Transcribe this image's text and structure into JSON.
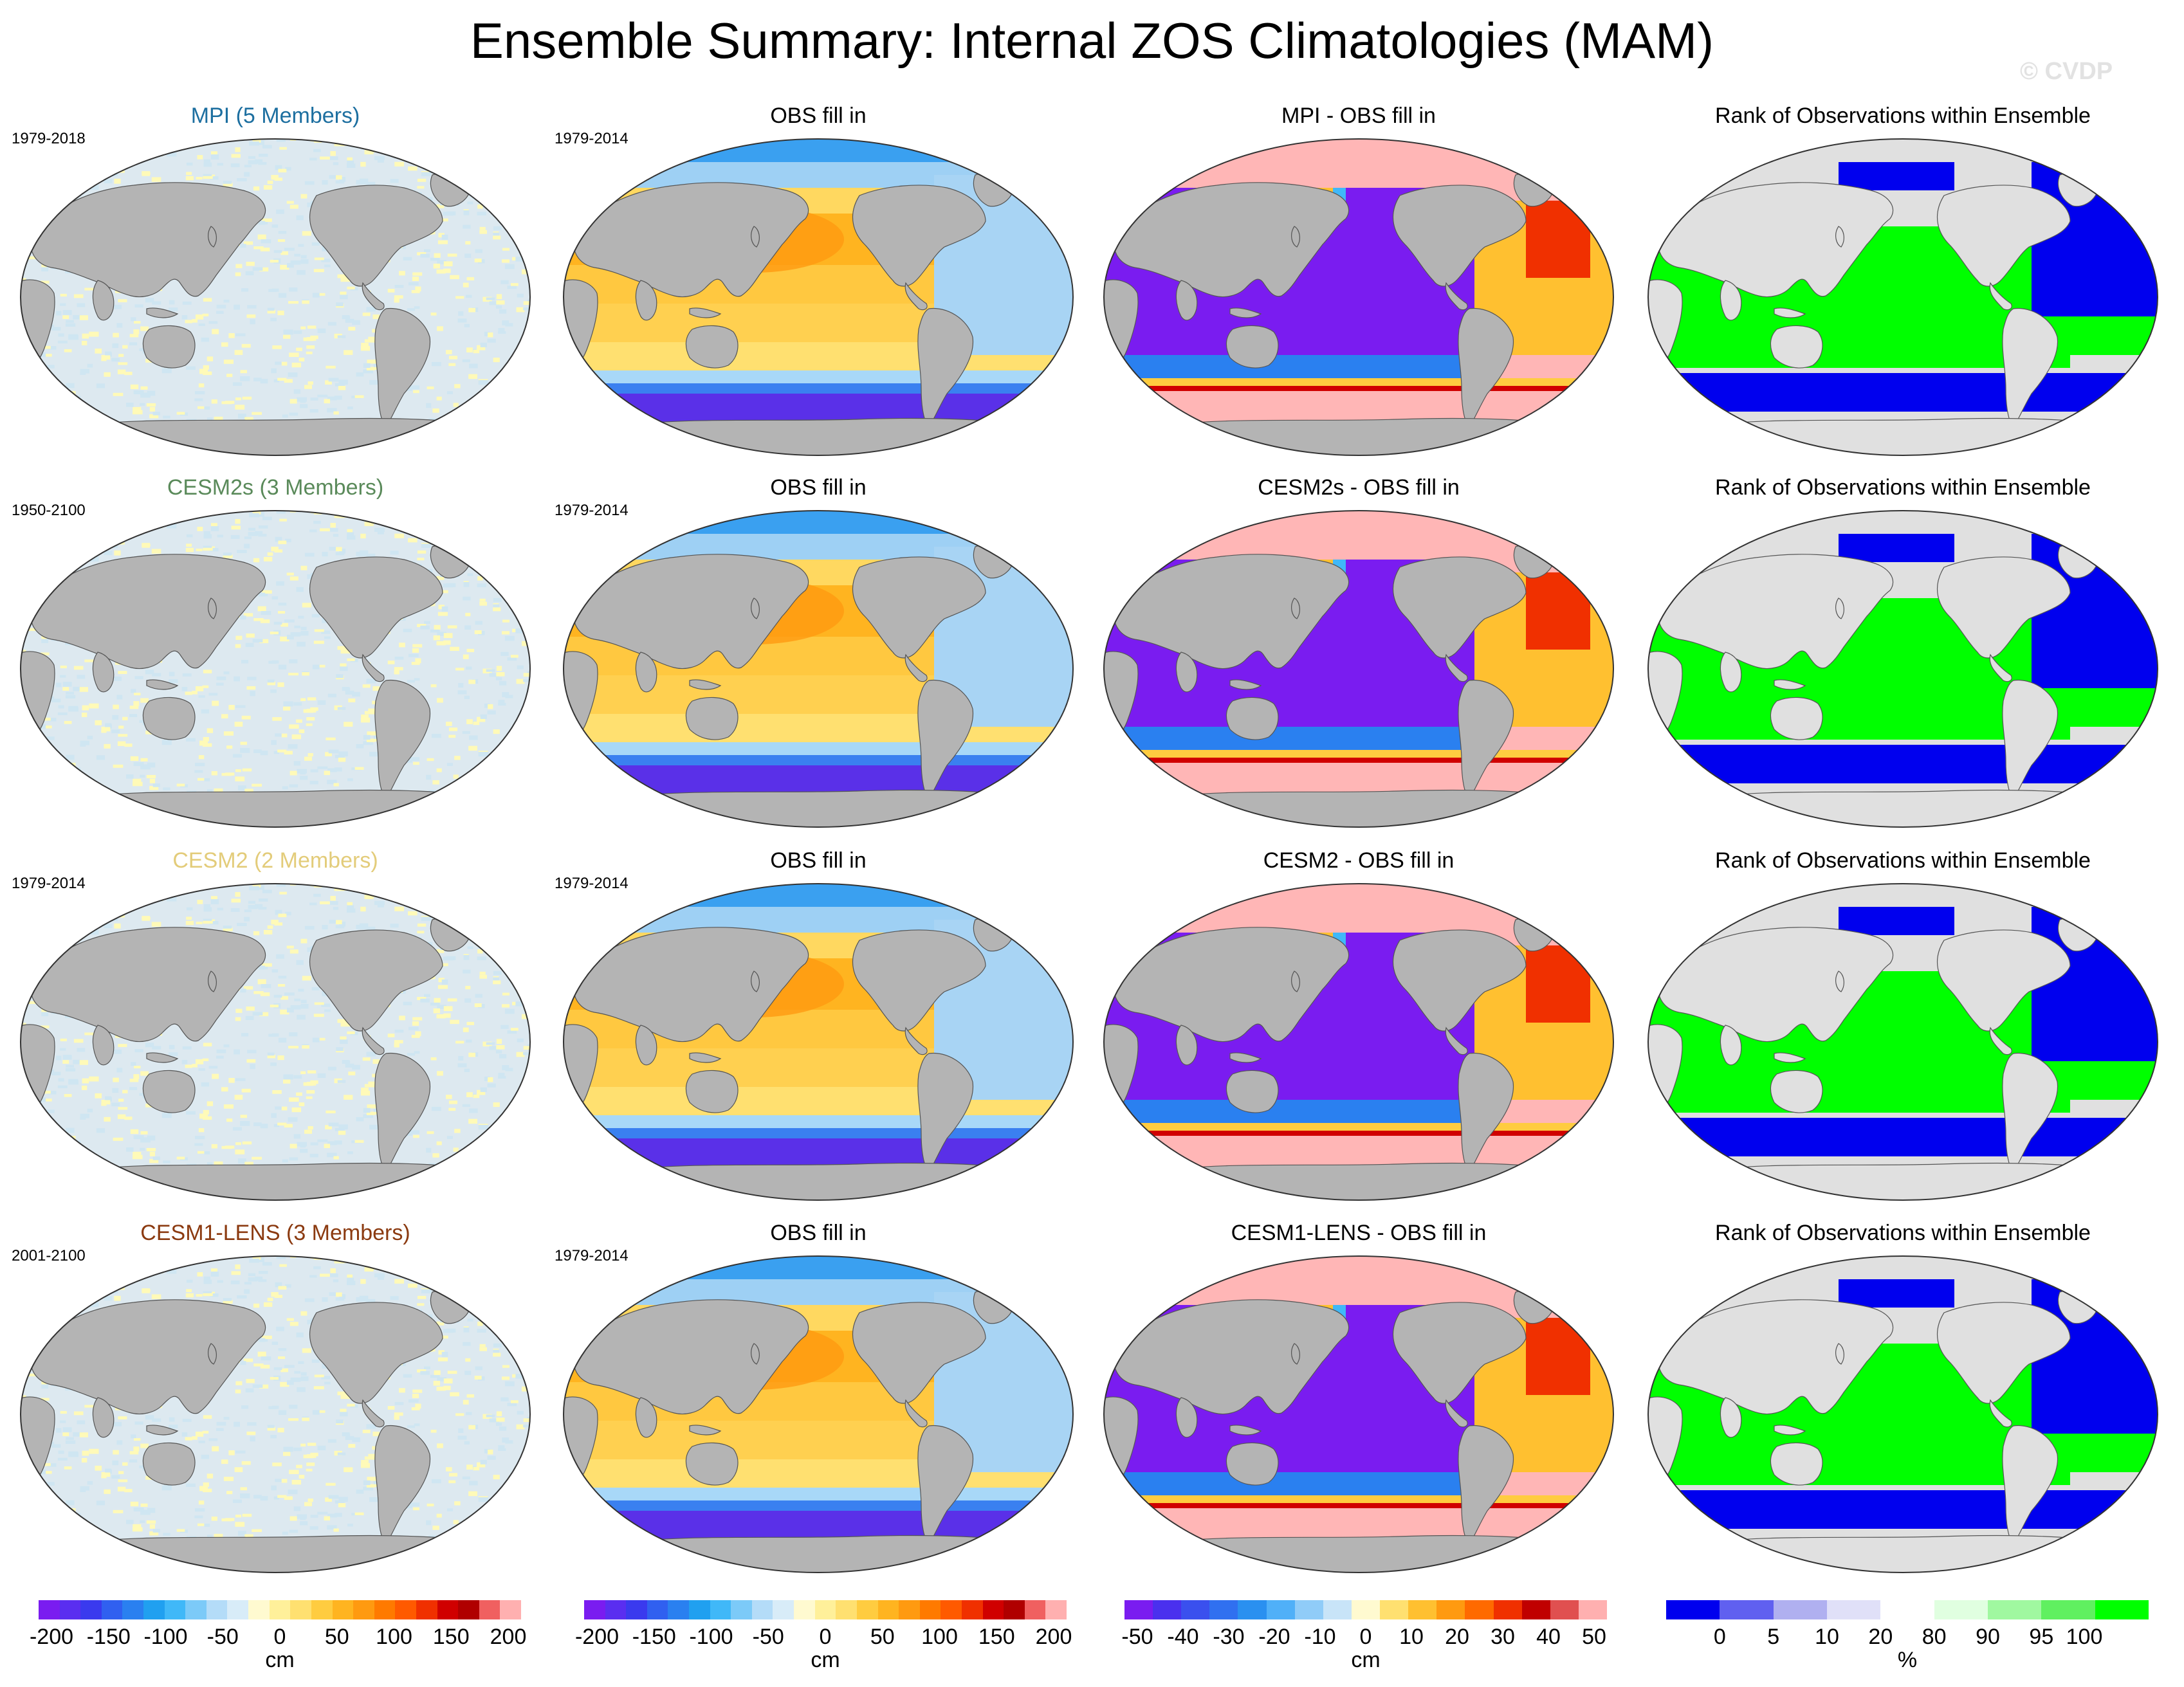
{
  "title": "Ensemble Summary: Internal ZOS Climatologies (MAM)",
  "watermark": "© CVDP",
  "colors": {
    "land": "#b4b4b4",
    "ocean_col1": "#dde9f0",
    "rank_low": "#0000ee",
    "rank_high": "#00ff00",
    "rank_land": "#e0e0e0",
    "diff_positive_bg": "#ffb6b6"
  },
  "rows": [
    {
      "model_title": "MPI (5 Members)",
      "model_title_color": "#1d6fa0",
      "model_period": "1979-2018",
      "obs_title": "OBS fill in",
      "obs_period": "1979-2014",
      "diff_title": "MPI - OBS fill in",
      "rank_title": "Rank of Observations within Ensemble"
    },
    {
      "model_title": "CESM2s (3 Members)",
      "model_title_color": "#5a8a5a",
      "model_period": "1950-2100",
      "obs_title": "OBS fill in",
      "obs_period": "1979-2014",
      "diff_title": "CESM2s - OBS fill in",
      "rank_title": "Rank of Observations within Ensemble"
    },
    {
      "model_title": "CESM2 (2 Members)",
      "model_title_color": "#e3cc7a",
      "model_period": "1979-2014",
      "obs_title": "OBS fill in",
      "obs_period": "1979-2014",
      "diff_title": "CESM2 - OBS fill in",
      "rank_title": "Rank of Observations within Ensemble"
    },
    {
      "model_title": "CESM1-LENS (3 Members)",
      "model_title_color": "#8b3a10",
      "model_period": "2001-2100",
      "obs_title": "OBS fill in",
      "obs_period": "1979-2014",
      "diff_title": "CESM1-LENS - OBS fill in",
      "rank_title": "Rank of Observations within Ensemble"
    }
  ],
  "colorbars": [
    {
      "unit": "cm",
      "ticks": [
        "-200",
        "-150",
        "-100",
        "-50",
        "0",
        "50",
        "100",
        "150",
        "200"
      ],
      "colors": [
        "#7a1cf0",
        "#5a2ef0",
        "#3a3aee",
        "#3060f0",
        "#2a80f0",
        "#20a0f0",
        "#40b8f8",
        "#7ccaf8",
        "#b4dcf8",
        "#d8ecf8",
        "#fffad0",
        "#fff09a",
        "#ffe070",
        "#ffcc40",
        "#ffb420",
        "#ff9a10",
        "#ff7a00",
        "#ff5a00",
        "#f03000",
        "#d00000",
        "#b00000",
        "#f06060",
        "#ffb0b0"
      ]
    },
    {
      "unit": "cm",
      "ticks": [
        "-200",
        "-150",
        "-100",
        "-50",
        "0",
        "50",
        "100",
        "150",
        "200"
      ],
      "colors": [
        "#7a1cf0",
        "#5a2ef0",
        "#3a3aee",
        "#3060f0",
        "#2a80f0",
        "#20a0f0",
        "#40b8f8",
        "#7ccaf8",
        "#b4dcf8",
        "#d8ecf8",
        "#fffad0",
        "#fff09a",
        "#ffe070",
        "#ffcc40",
        "#ffb420",
        "#ff9a10",
        "#ff7a00",
        "#ff5a00",
        "#f03000",
        "#d00000",
        "#b00000",
        "#f06060",
        "#ffb0b0"
      ]
    },
    {
      "unit": "cm",
      "ticks": [
        "-50",
        "-40",
        "-30",
        "-20",
        "-10",
        "0",
        "10",
        "20",
        "30",
        "40",
        "50"
      ],
      "colors": [
        "#7a1cf0",
        "#4a30ee",
        "#3a50ee",
        "#3070f0",
        "#2a90f0",
        "#50b0f8",
        "#90ccf8",
        "#c8e4f8",
        "#fffad0",
        "#ffe070",
        "#ffc030",
        "#ff9a10",
        "#ff6a00",
        "#f03000",
        "#c00000",
        "#e05050",
        "#ffb0b0"
      ]
    },
    {
      "unit": "%",
      "ticks": [
        "0",
        "5",
        "10",
        "20",
        "80",
        "90",
        "95",
        "100"
      ],
      "colors": [
        "#0000ee",
        "#6060f0",
        "#b0b0f0",
        "#e0e0f8",
        "#ffffff",
        "#e0ffe0",
        "#a0f8a0",
        "#60f060",
        "#00ff00"
      ]
    }
  ]
}
